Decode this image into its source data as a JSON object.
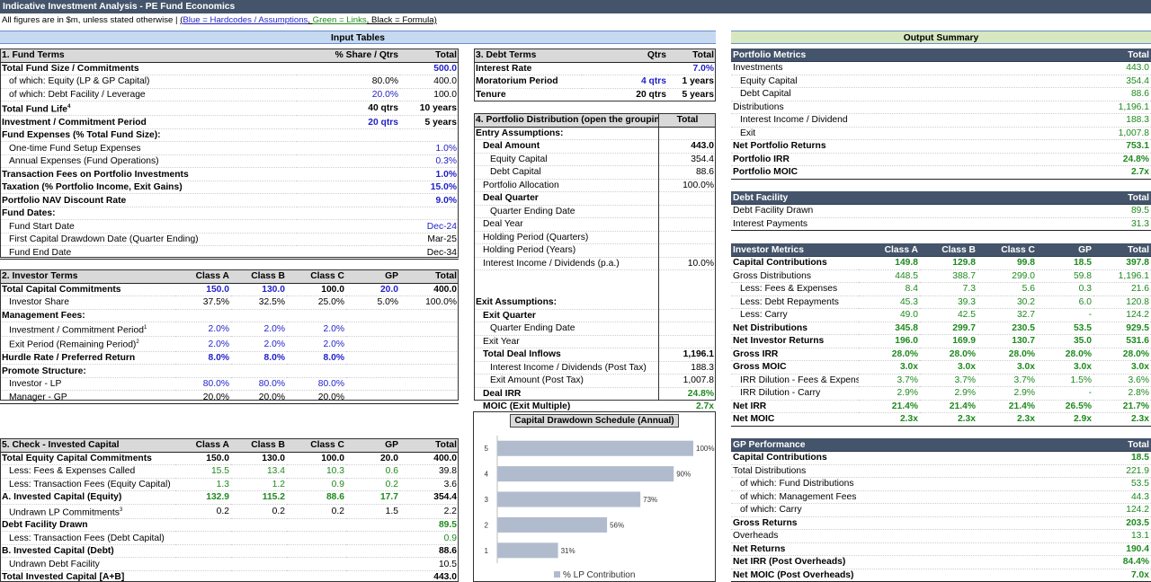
{
  "banner": "Indicative Investment Analysis - PE Fund Economics",
  "note": {
    "prefix": "All figures are in $m, unless stated otherwise |",
    "open": "(",
    "blue": "Blue = Hardcodes / Assumptions",
    "comma1": ", ",
    "green": "Green = Links",
    "comma2": ", ",
    "black": "Black = Formula)"
  },
  "sections": {
    "input": "Input Tables",
    "output": "Output Summary"
  },
  "fund_terms": {
    "header": [
      "1. Fund Terms",
      "% Share / Qtrs",
      "Total"
    ],
    "rows": [
      [
        "Total Fund Size / Commitments",
        "",
        "500.0"
      ],
      [
        "of which: Equity (LP & GP Capital)",
        "80.0%",
        "400.0"
      ],
      [
        "of which: Debt Facility / Leverage",
        "20.0%",
        "100.0"
      ],
      [
        "Total Fund Life",
        "40 qtrs",
        "10 years"
      ],
      [
        "Investment / Commitment Period",
        "20 qtrs",
        "5 years"
      ],
      [
        "Fund Expenses (% Total Fund Size):",
        "",
        ""
      ],
      [
        "One-time Fund Setup Expenses",
        "",
        "1.0%"
      ],
      [
        "Annual Expenses (Fund Operations)",
        "",
        "0.3%"
      ],
      [
        "Transaction Fees on Portfolio Investments",
        "",
        "1.0%"
      ],
      [
        "Taxation (% Portfolio Income, Exit Gains)",
        "",
        "15.0%"
      ],
      [
        "Portfolio NAV Discount Rate",
        "",
        "9.0%"
      ],
      [
        "Fund Dates:",
        "",
        ""
      ],
      [
        "Fund Start Date",
        "",
        "Dec-24"
      ],
      [
        "First Capital Drawdown Date (Quarter Ending)",
        "",
        "Mar-25"
      ],
      [
        "Fund End Date",
        "",
        "Dec-34"
      ]
    ],
    "fund_life_sup": "4"
  },
  "investor_terms": {
    "header": [
      "2. Investor Terms",
      "Class A",
      "Class B",
      "Class C",
      "GP",
      "Total"
    ],
    "rows": [
      [
        "Total Capital Commitments",
        "150.0",
        "130.0",
        "100.0",
        "20.0",
        "400.0"
      ],
      [
        "Investor Share",
        "37.5%",
        "32.5%",
        "25.0%",
        "5.0%",
        "100.0%"
      ],
      [
        "Management Fees:",
        "",
        "",
        "",
        "",
        ""
      ],
      [
        "Investment / Commitment Period",
        "2.0%",
        "2.0%",
        "2.0%",
        "",
        ""
      ],
      [
        "Exit Period (Remaining Period)",
        "2.0%",
        "2.0%",
        "2.0%",
        "",
        ""
      ],
      [
        "Hurdle Rate / Preferred Return",
        "8.0%",
        "8.0%",
        "8.0%",
        "",
        ""
      ],
      [
        "Promote Structure:",
        "",
        "",
        "",
        "",
        ""
      ],
      [
        "Investor - LP",
        "80.0%",
        "80.0%",
        "80.0%",
        "",
        ""
      ],
      [
        "Manager - GP",
        "20.0%",
        "20.0%",
        "20.0%",
        "",
        ""
      ]
    ],
    "sup1": "1",
    "sup2": "2"
  },
  "check": {
    "header": [
      "5. Check - Invested Capital",
      "Class A",
      "Class B",
      "Class C",
      "GP",
      "Total"
    ],
    "rows": [
      [
        "Total Equity Capital Commitments",
        "150.0",
        "130.0",
        "100.0",
        "20.0",
        "400.0"
      ],
      [
        "Less: Fees & Expenses Called",
        "15.5",
        "13.4",
        "10.3",
        "0.6",
        "39.8"
      ],
      [
        "Less: Transaction Fees (Equity Capital)",
        "1.3",
        "1.2",
        "0.9",
        "0.2",
        "3.6"
      ],
      [
        "A. Invested Capital (Equity)",
        "132.9",
        "115.2",
        "88.6",
        "17.7",
        "354.4"
      ],
      [
        "Undrawn LP Commitments",
        "0.2",
        "0.2",
        "0.2",
        "1.5",
        "2.2"
      ],
      [
        "Debt Facility Drawn",
        "",
        "",
        "",
        "",
        "89.5"
      ],
      [
        "Less: Transaction Fees (Debt Capital)",
        "",
        "",
        "",
        "",
        "0.9"
      ],
      [
        "B. Invested Capital (Debt)",
        "",
        "",
        "",
        "",
        "88.6"
      ],
      [
        "Undrawn Debt Facility",
        "",
        "",
        "",
        "",
        "10.5"
      ],
      [
        "Total Invested Capital [A+B]",
        "",
        "",
        "",
        "",
        "443.0"
      ]
    ],
    "sup3": "3"
  },
  "debt_terms": {
    "header": [
      "3. Debt Terms",
      "Qtrs",
      "Total"
    ],
    "rows": [
      [
        "Interest Rate",
        "",
        "7.0%"
      ],
      [
        "Moratorium Period",
        "4 qtrs",
        "1 years"
      ],
      [
        "Tenure",
        "20 qtrs",
        "5 years"
      ]
    ]
  },
  "portfolio_dist": {
    "header": [
      "4. Portfolio Distribution (open the grouping",
      "Total"
    ],
    "rows": [
      [
        "Entry Assumptions:",
        ""
      ],
      [
        "Deal Amount",
        "443.0"
      ],
      [
        "Equity Capital",
        "354.4"
      ],
      [
        "Debt Capital",
        "88.6"
      ],
      [
        "Portfolio Allocation",
        "100.0%"
      ],
      [
        "Deal Quarter",
        ""
      ],
      [
        "Quarter Ending Date",
        ""
      ],
      [
        "Deal Year",
        ""
      ],
      [
        "Holding Period (Quarters)",
        ""
      ],
      [
        "Holding Period (Years)",
        ""
      ],
      [
        "Interest Income / Dividends (p.a.)",
        "10.0%"
      ],
      [
        "",
        ""
      ],
      [
        "",
        ""
      ],
      [
        "Exit Assumptions:",
        ""
      ],
      [
        "Exit Quarter",
        ""
      ],
      [
        "Quarter Ending Date",
        ""
      ],
      [
        "Exit Year",
        ""
      ],
      [
        "Total Deal Inflows",
        "1,196.1"
      ],
      [
        "Interest Income / Dividends (Post Tax)",
        "188.3"
      ],
      [
        "Exit Amount (Post Tax)",
        "1,007.8"
      ],
      [
        "Deal IRR",
        "24.8%"
      ],
      [
        "MOIC (Exit Multiple)",
        "2.7x"
      ]
    ]
  },
  "chart": {
    "title": "Capital Drawdown Schedule (Annual)",
    "legend": "% LP Contribution"
  },
  "chart_data": {
    "type": "bar",
    "orientation": "horizontal",
    "title": "Capital Drawdown Schedule (Annual)",
    "categories": [
      "1",
      "2",
      "3",
      "4",
      "5"
    ],
    "series": [
      {
        "name": "% LP Contribution",
        "values": [
          31,
          56,
          73,
          90,
          100
        ]
      }
    ],
    "value_labels": [
      "31%",
      "56%",
      "73%",
      "90%",
      "100%"
    ],
    "xlim": [
      0,
      100
    ],
    "grid": false,
    "legend_position": "bottom",
    "bar_color": "#b0bcce"
  },
  "portfolio_metrics": {
    "header": [
      "Portfolio Metrics",
      "Total"
    ],
    "rows": [
      [
        "Investments",
        "443.0"
      ],
      [
        "Equity Capital",
        "354.4"
      ],
      [
        "Debt Capital",
        "88.6"
      ],
      [
        "Distributions",
        "1,196.1"
      ],
      [
        "Interest Income / Dividend",
        "188.3"
      ],
      [
        "Exit",
        "1,007.8"
      ],
      [
        "Net Portfolio Returns",
        "753.1"
      ],
      [
        "Portfolio IRR",
        "24.8%"
      ],
      [
        "Portfolio MOIC",
        "2.7x"
      ]
    ]
  },
  "debt_facility": {
    "header": [
      "Debt Facility",
      "Total"
    ],
    "rows": [
      [
        "Debt Facility Drawn",
        "89.5"
      ],
      [
        "Interest Payments",
        "31.3"
      ]
    ]
  },
  "investor_metrics": {
    "header": [
      "Investor Metrics",
      "Class A",
      "Class B",
      "Class C",
      "GP",
      "Total"
    ],
    "rows": [
      [
        "Capital Contributions",
        "149.8",
        "129.8",
        "99.8",
        "18.5",
        "397.8"
      ],
      [
        "Gross Distributions",
        "448.5",
        "388.7",
        "299.0",
        "59.8",
        "1,196.1"
      ],
      [
        "Less: Fees & Expenses",
        "8.4",
        "7.3",
        "5.6",
        "0.3",
        "21.6"
      ],
      [
        "Less: Debt Repayments",
        "45.3",
        "39.3",
        "30.2",
        "6.0",
        "120.8"
      ],
      [
        "Less: Carry",
        "49.0",
        "42.5",
        "32.7",
        "-",
        "124.2"
      ],
      [
        "Net Distributions",
        "345.8",
        "299.7",
        "230.5",
        "53.5",
        "929.5"
      ],
      [
        "Net Investor Returns",
        "196.0",
        "169.9",
        "130.7",
        "35.0",
        "531.6"
      ],
      [
        "Gross IRR",
        "28.0%",
        "28.0%",
        "28.0%",
        "28.0%",
        "28.0%"
      ],
      [
        "Gross MOIC",
        "3.0x",
        "3.0x",
        "3.0x",
        "3.0x",
        "3.0x"
      ],
      [
        "IRR Dilution - Fees & Expenses",
        "3.7%",
        "3.7%",
        "3.7%",
        "1.5%",
        "3.6%"
      ],
      [
        "IRR Dilution - Carry",
        "2.9%",
        "2.9%",
        "2.9%",
        "-",
        "2.8%"
      ],
      [
        "Net IRR",
        "21.4%",
        "21.4%",
        "21.4%",
        "26.5%",
        "21.7%"
      ],
      [
        "Net MOIC",
        "2.3x",
        "2.3x",
        "2.3x",
        "2.9x",
        "2.3x"
      ]
    ]
  },
  "gp_performance": {
    "header": [
      "GP Performance",
      "Total"
    ],
    "rows": [
      [
        "Capital Contributions",
        "18.5"
      ],
      [
        "Total Distributions",
        "221.9"
      ],
      [
        "of which: Fund Distributions",
        "53.5"
      ],
      [
        "of which: Management Fees",
        "44.3"
      ],
      [
        "of which: Carry",
        "124.2"
      ],
      [
        "Gross Returns",
        "203.5"
      ],
      [
        "Overheads",
        "13.1"
      ],
      [
        "Net Returns",
        "190.4"
      ],
      [
        "Net IRR (Post Overheads)",
        "84.4%"
      ],
      [
        "Net MOIC (Post Overheads)",
        "7.0x"
      ]
    ]
  },
  "colors": {
    "banner": "#44546a",
    "input_band": "#c5d9f1",
    "output_band": "#d7e8c0",
    "hardcode": "#1f1fc8",
    "link": "#1e8a1e",
    "bar": "#b0bcce"
  }
}
